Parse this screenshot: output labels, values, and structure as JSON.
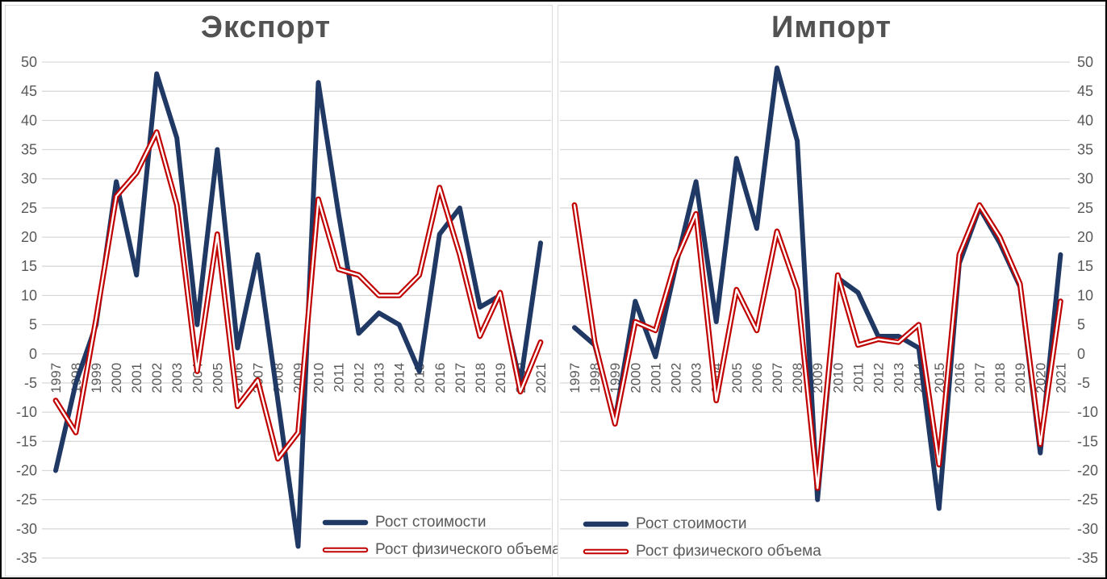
{
  "page": {
    "background": "#ffffff",
    "frame_color": "#000000"
  },
  "colors": {
    "value_series": "#1f3864",
    "volume_series": "#c00000",
    "volume_series_inner": "#ffffff",
    "gridline": "#d9d9d9",
    "axis_text": "#595959",
    "title_text": "#525252",
    "panel_border": "#d9d9d9"
  },
  "legend": {
    "value_label": "Рост стоимости",
    "volume_label": "Рост физического объема"
  },
  "chart_data": [
    {
      "type": "line",
      "title": "Экспорт",
      "y_axis_side": "left",
      "ylim": [
        -35,
        50
      ],
      "y_tick_step": 5,
      "grid": true,
      "legend_position": "inside-bottom-right",
      "x_label_rotation": -90,
      "categories": [
        1997,
        1998,
        1999,
        2000,
        2001,
        2002,
        2003,
        2004,
        2005,
        2006,
        2007,
        2008,
        2009,
        2010,
        2011,
        2012,
        2013,
        2014,
        2015,
        2016,
        2017,
        2018,
        2019,
        2020,
        2021
      ],
      "series": [
        {
          "name": "Рост стоимости",
          "color": "#1f3864",
          "style": "solid",
          "values": [
            -20,
            -5,
            5,
            29.5,
            13.5,
            48,
            37,
            5,
            35,
            1,
            17,
            -8,
            -33,
            46.5,
            24,
            3.5,
            7,
            5,
            -3,
            20.5,
            25,
            8,
            10,
            -5,
            19
          ]
        },
        {
          "name": "Рост физического объема",
          "color": "#c00000",
          "style": "double",
          "values": [
            -8,
            -13.5,
            6,
            27,
            31,
            38,
            25.5,
            -3,
            20.5,
            -9,
            -4.5,
            -18,
            -13.5,
            26.5,
            14.5,
            13.5,
            10,
            10,
            13.5,
            28.5,
            17,
            3,
            10.5,
            -6.5,
            2
          ]
        }
      ]
    },
    {
      "type": "line",
      "title": "Импорт",
      "y_axis_side": "right",
      "ylim": [
        -35,
        50
      ],
      "y_tick_step": 5,
      "grid": true,
      "legend_position": "inside-bottom-left",
      "x_label_rotation": -90,
      "categories": [
        1997,
        1998,
        1999,
        2000,
        2001,
        2002,
        2003,
        2004,
        2005,
        2006,
        2007,
        2008,
        2009,
        2010,
        2011,
        2012,
        2013,
        2014,
        2015,
        2016,
        2017,
        2018,
        2019,
        2020,
        2021
      ],
      "series": [
        {
          "name": "Рост стоимости",
          "color": "#1f3864",
          "style": "solid",
          "values": [
            4.5,
            1.5,
            -11.5,
            9,
            -0.5,
            15,
            29.5,
            5.5,
            33.5,
            21.5,
            49,
            36.5,
            -25,
            13,
            10.5,
            3,
            3,
            1,
            -26.5,
            15.5,
            25,
            19,
            11.5,
            -17,
            17
          ]
        },
        {
          "name": "Рост физического объема",
          "color": "#c00000",
          "style": "double",
          "values": [
            25.5,
            2,
            -12,
            5.5,
            4,
            16,
            24,
            -8,
            11,
            4,
            21,
            11,
            -23,
            13.5,
            1.5,
            2.5,
            2,
            5,
            -19,
            17,
            25.5,
            20,
            12,
            -15.5,
            9
          ]
        }
      ]
    }
  ]
}
